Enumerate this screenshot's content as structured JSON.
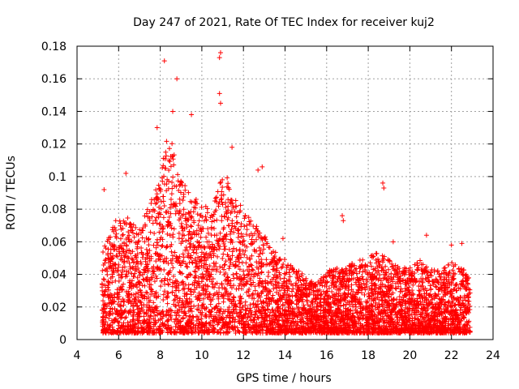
{
  "chart_data": {
    "type": "scatter",
    "title": "Day 247 of 2021, Rate Of TEC Index for receiver kuj2",
    "xlabel": "GPS time / hours",
    "ylabel": "ROTI / TECUs",
    "xlim": [
      4,
      24
    ],
    "ylim": [
      0,
      0.18
    ],
    "xticks": [
      "4",
      "6",
      "8",
      "10",
      "12",
      "14",
      "16",
      "18",
      "20",
      "22",
      "24"
    ],
    "yticks": [
      "0",
      "0.02",
      "0.04",
      "0.06",
      "0.08",
      "0.1",
      "0.12",
      "0.14",
      "0.16",
      "0.18"
    ],
    "grid": true,
    "marker": "+",
    "color": "#ff0000",
    "x_range_of_data": [
      5.2,
      22.9
    ],
    "envelope": {
      "description": "approximate upper envelope of dense red '+' markers (hour, ROTI)",
      "x": [
        5.2,
        5.5,
        6.0,
        6.5,
        7.0,
        7.5,
        8.0,
        8.3,
        8.7,
        9.0,
        9.5,
        10.0,
        10.5,
        11.0,
        11.5,
        12.0,
        12.5,
        13.0,
        13.5,
        14.0,
        14.5,
        15.0,
        15.5,
        16.0,
        16.5,
        17.0,
        17.5,
        18.0,
        18.5,
        19.0,
        19.5,
        20.0,
        20.5,
        21.0,
        21.5,
        22.0,
        22.5,
        22.9
      ],
      "y": [
        0.05,
        0.06,
        0.075,
        0.07,
        0.065,
        0.08,
        0.095,
        0.12,
        0.115,
        0.095,
        0.085,
        0.08,
        0.075,
        0.1,
        0.09,
        0.075,
        0.07,
        0.06,
        0.05,
        0.045,
        0.04,
        0.035,
        0.03,
        0.038,
        0.04,
        0.042,
        0.045,
        0.048,
        0.05,
        0.045,
        0.04,
        0.04,
        0.045,
        0.04,
        0.038,
        0.045,
        0.04,
        0.035
      ]
    },
    "notable_points": [
      {
        "x": 8.2,
        "y": 0.171
      },
      {
        "x": 8.8,
        "y": 0.16
      },
      {
        "x": 10.9,
        "y": 0.176
      },
      {
        "x": 10.85,
        "y": 0.173
      },
      {
        "x": 10.85,
        "y": 0.151
      },
      {
        "x": 10.9,
        "y": 0.145
      },
      {
        "x": 9.5,
        "y": 0.138
      },
      {
        "x": 8.6,
        "y": 0.14
      },
      {
        "x": 7.85,
        "y": 0.13
      },
      {
        "x": 11.45,
        "y": 0.118
      },
      {
        "x": 12.9,
        "y": 0.106
      },
      {
        "x": 12.7,
        "y": 0.104
      },
      {
        "x": 6.35,
        "y": 0.102
      },
      {
        "x": 18.7,
        "y": 0.096
      },
      {
        "x": 18.75,
        "y": 0.093
      },
      {
        "x": 5.3,
        "y": 0.092
      },
      {
        "x": 16.75,
        "y": 0.076
      },
      {
        "x": 16.8,
        "y": 0.073
      },
      {
        "x": 13.9,
        "y": 0.062
      },
      {
        "x": 20.8,
        "y": 0.064
      },
      {
        "x": 22.5,
        "y": 0.059
      },
      {
        "x": 22.0,
        "y": 0.058
      },
      {
        "x": 19.2,
        "y": 0.06
      }
    ]
  }
}
